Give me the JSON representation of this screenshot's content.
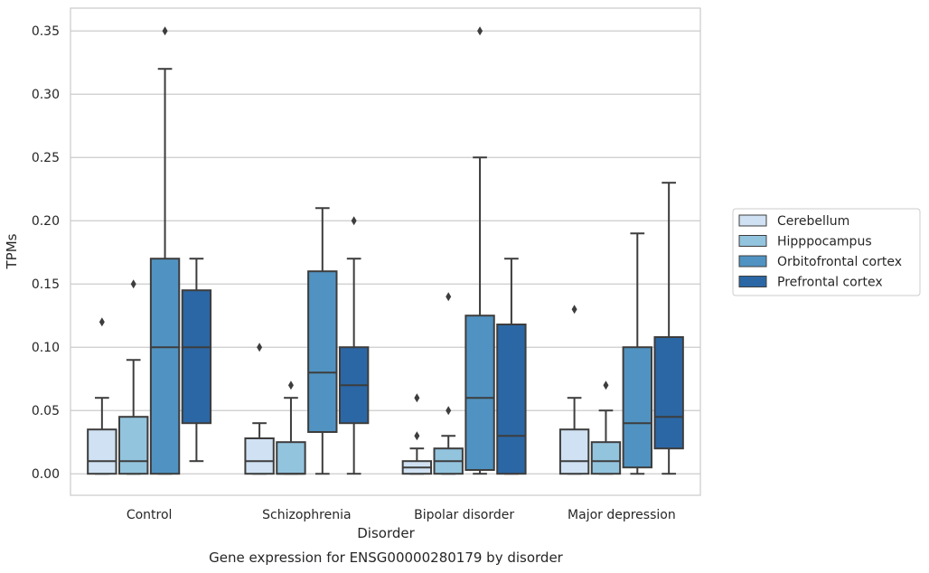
{
  "caption": "Gene expression for ENSG00000280179 by disorder",
  "chart_data": {
    "type": "box",
    "xlabel": "Disorder",
    "ylabel": "TPMs",
    "ylim": [
      -0.017,
      0.368
    ],
    "yticks": [
      "0.00",
      "0.05",
      "0.10",
      "0.15",
      "0.20",
      "0.25",
      "0.30",
      "0.35"
    ],
    "grid": true,
    "legend_position": "right",
    "categories": [
      "Control",
      "Schizophrenia",
      "Bipolar disorder",
      "Major depression"
    ],
    "series": [
      {
        "name": "Cerebellum",
        "color": "#cfe1f2",
        "boxes": [
          {
            "whislo": 0.0,
            "q1": 0.0,
            "med": 0.01,
            "q3": 0.035,
            "whishi": 0.06,
            "fliers": [
              0.12
            ]
          },
          {
            "whislo": 0.0,
            "q1": 0.0,
            "med": 0.01,
            "q3": 0.028,
            "whishi": 0.04,
            "fliers": [
              0.1
            ]
          },
          {
            "whislo": 0.0,
            "q1": 0.0,
            "med": 0.005,
            "q3": 0.01,
            "whishi": 0.02,
            "fliers": [
              0.03,
              0.06
            ]
          },
          {
            "whislo": 0.0,
            "q1": 0.0,
            "med": 0.01,
            "q3": 0.035,
            "whishi": 0.06,
            "fliers": [
              0.13
            ]
          }
        ]
      },
      {
        "name": "Hipppocampus",
        "color": "#93c4de",
        "boxes": [
          {
            "whislo": 0.0,
            "q1": 0.0,
            "med": 0.01,
            "q3": 0.045,
            "whishi": 0.09,
            "fliers": [
              0.15
            ]
          },
          {
            "whislo": 0.0,
            "q1": 0.0,
            "med": 0.0,
            "q3": 0.025,
            "whishi": 0.06,
            "fliers": [
              0.07
            ]
          },
          {
            "whislo": 0.0,
            "q1": 0.0,
            "med": 0.01,
            "q3": 0.02,
            "whishi": 0.03,
            "fliers": [
              0.05,
              0.14
            ]
          },
          {
            "whislo": 0.0,
            "q1": 0.0,
            "med": 0.01,
            "q3": 0.025,
            "whishi": 0.05,
            "fliers": [
              0.07
            ]
          }
        ]
      },
      {
        "name": "Orbitofrontal cortex",
        "color": "#5093c2",
        "boxes": [
          {
            "whislo": 0.0,
            "q1": 0.0,
            "med": 0.1,
            "q3": 0.17,
            "whishi": 0.32,
            "fliers": [
              0.35
            ]
          },
          {
            "whislo": 0.0,
            "q1": 0.033,
            "med": 0.08,
            "q3": 0.16,
            "whishi": 0.21,
            "fliers": []
          },
          {
            "whislo": 0.0,
            "q1": 0.003,
            "med": 0.06,
            "q3": 0.125,
            "whishi": 0.25,
            "fliers": [
              0.35
            ]
          },
          {
            "whislo": 0.0,
            "q1": 0.005,
            "med": 0.04,
            "q3": 0.1,
            "whishi": 0.19,
            "fliers": []
          }
        ]
      },
      {
        "name": "Prefrontal cortex",
        "color": "#2b67a5",
        "boxes": [
          {
            "whislo": 0.01,
            "q1": 0.04,
            "med": 0.1,
            "q3": 0.145,
            "whishi": 0.17,
            "fliers": []
          },
          {
            "whislo": 0.0,
            "q1": 0.04,
            "med": 0.07,
            "q3": 0.1,
            "whishi": 0.17,
            "fliers": [
              0.2
            ]
          },
          {
            "whislo": 0.0,
            "q1": 0.0,
            "med": 0.03,
            "q3": 0.118,
            "whishi": 0.17,
            "fliers": []
          },
          {
            "whislo": 0.0,
            "q1": 0.02,
            "med": 0.045,
            "q3": 0.108,
            "whishi": 0.23,
            "fliers": []
          }
        ]
      }
    ]
  }
}
